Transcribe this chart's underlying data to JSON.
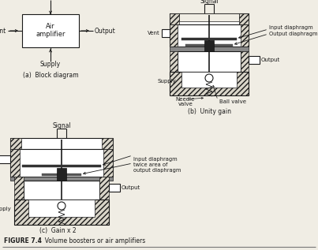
{
  "title_bold": "FIGURE 7.4",
  "title_rest": "  Volume boosters or air amplifiers",
  "bg_color": "#f0ede4",
  "line_color": "#1a1a1a",
  "caption_a": "(a)  Block diagram",
  "caption_b": "(b)  Unity gain",
  "caption_c": "(c)  Gain x 2",
  "label_signal": "Signal",
  "label_vent": "Vent",
  "label_output": "Output",
  "label_supply": "Supply",
  "label_air1": "Air",
  "label_air2": "amplifier",
  "label_needle_valve": "Needle\nvalve",
  "label_ball_valve": "Ball valve",
  "label_input_diaphragm": "Input diaphragm",
  "label_output_diaphragm": "Output diaphragm",
  "label_gain2_annot": "Input diaphragm\ntwice area of\noutput diaphragm"
}
